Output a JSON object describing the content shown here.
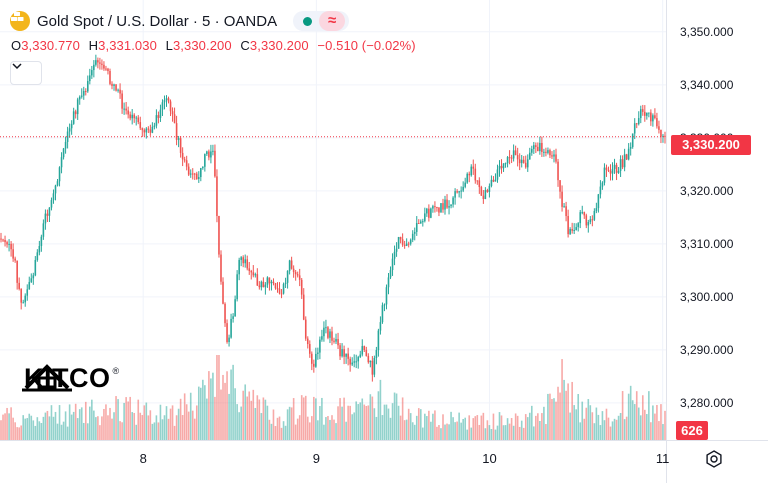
{
  "header": {
    "title": "Gold Spot / U.S. Dollar · 5 · OANDA",
    "wave_symbol": "≈",
    "ohlc": [
      {
        "label": "O",
        "value": "3,330.770"
      },
      {
        "label": "H",
        "value": "3,331.030"
      },
      {
        "label": "L",
        "value": "3,330.200"
      },
      {
        "label": "C",
        "value": "3,330.200"
      }
    ],
    "change": "−0.510 (−0.02%)"
  },
  "watermark": {
    "text": "KITCO",
    "reg": "®"
  },
  "last_price_label": "3,330.200",
  "last_volume_label": "626",
  "colors": {
    "up": "#26a69a",
    "down": "#ef5350",
    "label_red": "#f23645",
    "grid": "#f0f3fa"
  },
  "chart_data": {
    "type": "candlestick",
    "title": "Gold Spot / U.S. Dollar · 5 · OANDA",
    "ylim": [
      3273,
      3356
    ],
    "y_ticks": [
      "3,350.000",
      "3,340.000",
      "3,330.000",
      "3,320.000",
      "3,310.000",
      "3,300.000",
      "3,290.000",
      "3,280.000"
    ],
    "y_tick_values": [
      3350,
      3340,
      3330,
      3320,
      3310,
      3300,
      3290,
      3280
    ],
    "x_ticks": [
      "8",
      "9",
      "10",
      "11"
    ],
    "x_tick_positions": [
      0.215,
      0.475,
      0.735,
      0.995
    ],
    "last_price": 3330.2,
    "path_points": [
      [
        0.0,
        3311
      ],
      [
        0.02,
        3308
      ],
      [
        0.03,
        3298
      ],
      [
        0.05,
        3305
      ],
      [
        0.06,
        3312
      ],
      [
        0.075,
        3318
      ],
      [
        0.085,
        3322
      ],
      [
        0.095,
        3329
      ],
      [
        0.105,
        3333
      ],
      [
        0.12,
        3338
      ],
      [
        0.135,
        3341
      ],
      [
        0.145,
        3345
      ],
      [
        0.16,
        3342
      ],
      [
        0.175,
        3339
      ],
      [
        0.19,
        3334
      ],
      [
        0.205,
        3333
      ],
      [
        0.22,
        3331
      ],
      [
        0.235,
        3334
      ],
      [
        0.25,
        3338
      ],
      [
        0.265,
        3330
      ],
      [
        0.28,
        3324
      ],
      [
        0.295,
        3322
      ],
      [
        0.31,
        3327
      ],
      [
        0.32,
        3327
      ],
      [
        0.33,
        3304
      ],
      [
        0.34,
        3291
      ],
      [
        0.35,
        3297
      ],
      [
        0.36,
        3308
      ],
      [
        0.375,
        3305
      ],
      [
        0.39,
        3302
      ],
      [
        0.405,
        3303
      ],
      [
        0.42,
        3300
      ],
      [
        0.435,
        3306
      ],
      [
        0.45,
        3303
      ],
      [
        0.46,
        3291
      ],
      [
        0.47,
        3287
      ],
      [
        0.485,
        3294
      ],
      [
        0.5,
        3292
      ],
      [
        0.515,
        3289
      ],
      [
        0.53,
        3287
      ],
      [
        0.545,
        3290
      ],
      [
        0.56,
        3286
      ],
      [
        0.575,
        3298
      ],
      [
        0.585,
        3304
      ],
      [
        0.6,
        3311
      ],
      [
        0.615,
        3310
      ],
      [
        0.63,
        3315
      ],
      [
        0.645,
        3316
      ],
      [
        0.66,
        3317
      ],
      [
        0.675,
        3318
      ],
      [
        0.69,
        3320
      ],
      [
        0.71,
        3324
      ],
      [
        0.725,
        3319
      ],
      [
        0.74,
        3322
      ],
      [
        0.76,
        3325
      ],
      [
        0.775,
        3327
      ],
      [
        0.79,
        3325
      ],
      [
        0.805,
        3329
      ],
      [
        0.82,
        3327
      ],
      [
        0.835,
        3326
      ],
      [
        0.845,
        3318
      ],
      [
        0.855,
        3312
      ],
      [
        0.865,
        3314
      ],
      [
        0.875,
        3316
      ],
      [
        0.885,
        3313
      ],
      [
        0.895,
        3316
      ],
      [
        0.91,
        3324
      ],
      [
        0.925,
        3324
      ],
      [
        0.94,
        3326
      ],
      [
        0.955,
        3332
      ],
      [
        0.965,
        3336
      ],
      [
        0.975,
        3334
      ],
      [
        0.985,
        3333
      ],
      [
        0.995,
        3330
      ]
    ],
    "volume_profile": [
      [
        0.0,
        0.3
      ],
      [
        0.05,
        0.3
      ],
      [
        0.12,
        0.35
      ],
      [
        0.2,
        0.4
      ],
      [
        0.26,
        0.35
      ],
      [
        0.31,
        0.55
      ],
      [
        0.33,
        0.9
      ],
      [
        0.36,
        0.55
      ],
      [
        0.42,
        0.3
      ],
      [
        0.46,
        0.45
      ],
      [
        0.5,
        0.35
      ],
      [
        0.56,
        0.45
      ],
      [
        0.58,
        0.6
      ],
      [
        0.62,
        0.3
      ],
      [
        0.7,
        0.25
      ],
      [
        0.76,
        0.25
      ],
      [
        0.82,
        0.35
      ],
      [
        0.845,
        0.8
      ],
      [
        0.87,
        0.4
      ],
      [
        0.92,
        0.3
      ],
      [
        0.955,
        0.6
      ],
      [
        0.98,
        0.4
      ],
      [
        1.0,
        0.3
      ]
    ]
  }
}
